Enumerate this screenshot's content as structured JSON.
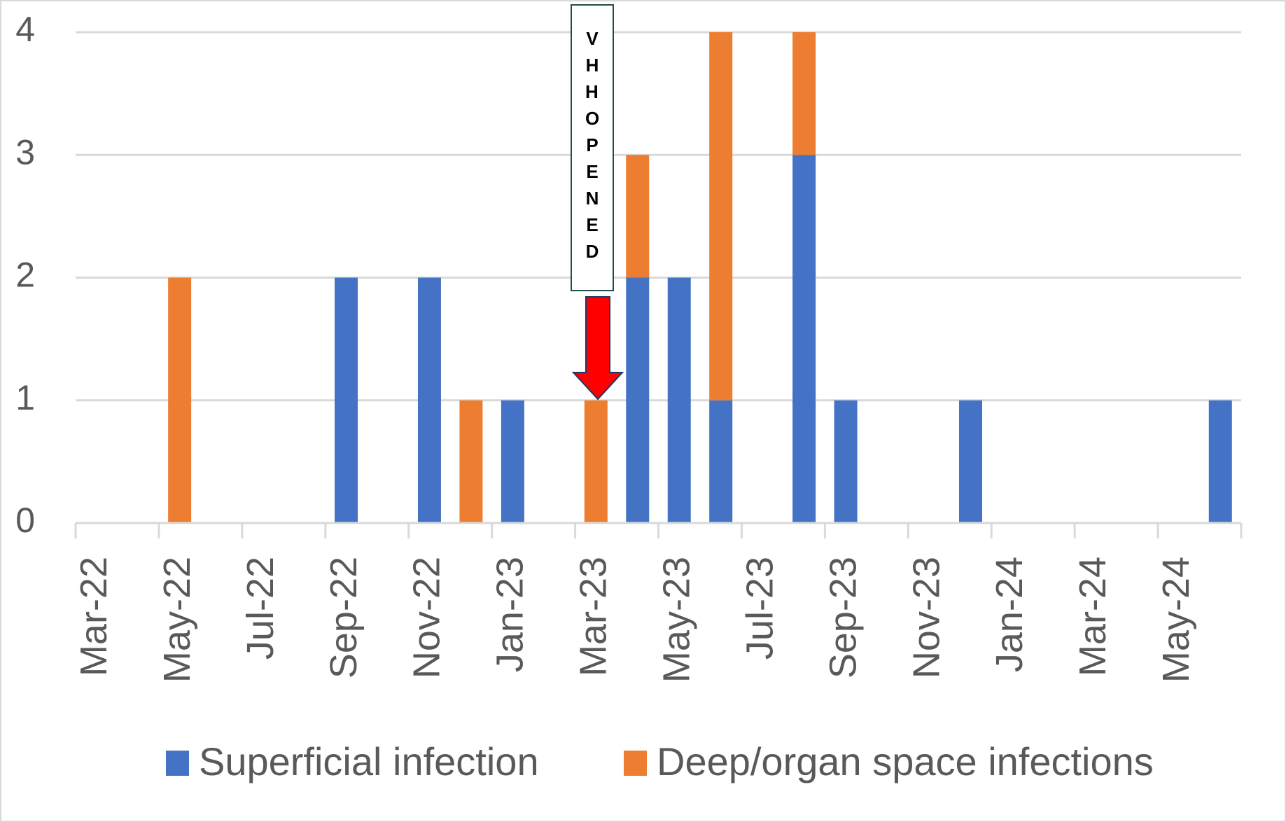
{
  "chart_data": {
    "type": "stacked_bar",
    "categories": [
      "Mar-22",
      null,
      "May-22",
      null,
      "Jul-22",
      null,
      "Sep-22",
      null,
      "Nov-22",
      null,
      "Jan-23",
      null,
      "Mar-23",
      null,
      "May-23",
      null,
      "Jul-23",
      null,
      "Sep-23",
      null,
      "Nov-23",
      null,
      "Jan-24",
      null,
      "Mar-24",
      null,
      "May-24",
      null
    ],
    "series": [
      {
        "name": "Superficial infection",
        "color": "#4472c4",
        "values": [
          0,
          0,
          0,
          0,
          0,
          0,
          2,
          0,
          2,
          0,
          1,
          0,
          0,
          2,
          2,
          1,
          0,
          3,
          1,
          0,
          0,
          1,
          0,
          0,
          0,
          0,
          0,
          1
        ]
      },
      {
        "name": "Deep/organ space infections",
        "color": "#ed7d31",
        "values": [
          0,
          0,
          2,
          0,
          0,
          0,
          0,
          0,
          0,
          1,
          0,
          0,
          1,
          1,
          0,
          3,
          0,
          1,
          0,
          0,
          0,
          0,
          0,
          0,
          0,
          0,
          0,
          0
        ]
      }
    ],
    "ylim": [
      0,
      4
    ],
    "yticks": [
      0,
      1,
      2,
      3,
      4
    ],
    "grid": true,
    "annotation": "VHH OPENED",
    "legend": "bottom"
  }
}
